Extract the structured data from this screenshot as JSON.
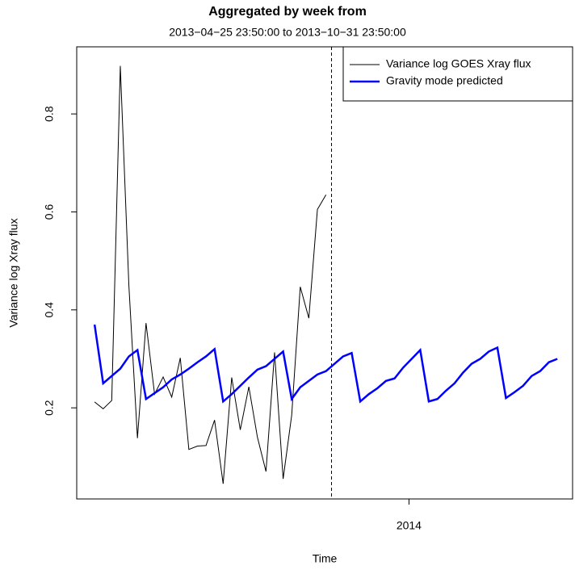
{
  "chart_data": {
    "type": "line",
    "title": "Aggregated by week from",
    "subtitle": "2013−04−25 23:50:00 to 2013−10−31 23:50:00",
    "x_label": "Time",
    "y_label": "Variance log Xray flux",
    "xlim": [
      2013.275,
      2014.357
    ],
    "ylim": [
      0.014,
      0.937
    ],
    "xticks": [
      {
        "value": 2014,
        "label": "2014"
      }
    ],
    "yticks": [
      0.2,
      0.4,
      0.6,
      0.8
    ],
    "vline": 2013.831,
    "legend": "topright",
    "series": [
      {
        "name": "Variance log GOES Xray flux",
        "color": "#000000",
        "width": 1,
        "x": [
          2013.314,
          2013.3327,
          2013.3514,
          2013.3701,
          2013.3888,
          2013.4075,
          2013.4262,
          2013.4449,
          2013.4636,
          2013.4823,
          2013.501,
          2013.5197,
          2013.5384,
          2013.5571,
          2013.5758,
          2013.5945,
          2013.6132,
          2013.6319,
          2013.6506,
          2013.6693,
          2013.688,
          2013.7067,
          2013.7254,
          2013.7441,
          2013.7628,
          2013.7815,
          2013.8002,
          2013.8189
        ],
        "values": [
          0.212,
          0.198,
          0.215,
          0.898,
          0.45,
          0.138,
          0.373,
          0.228,
          0.263,
          0.222,
          0.302,
          0.115,
          0.122,
          0.123,
          0.175,
          0.045,
          0.262,
          0.155,
          0.243,
          0.14,
          0.07,
          0.313,
          0.055,
          0.185,
          0.447,
          0.383,
          0.605,
          0.635
        ]
      },
      {
        "name": "Gravity mode predicted",
        "color": "#0000ff",
        "width": 2.5,
        "x": [
          2013.314,
          2013.3327,
          2013.3514,
          2013.3701,
          2013.3888,
          2013.4075,
          2013.4262,
          2013.4449,
          2013.4636,
          2013.4823,
          2013.501,
          2013.5197,
          2013.5384,
          2013.5571,
          2013.5758,
          2013.5945,
          2013.6132,
          2013.6319,
          2013.6506,
          2013.6693,
          2013.688,
          2013.7067,
          2013.7254,
          2013.7441,
          2013.7628,
          2013.7815,
          2013.8002,
          2013.8189,
          2013.8376,
          2013.8563,
          2013.875,
          2013.8937,
          2013.9124,
          2013.9311,
          2013.9498,
          2013.9685,
          2013.9872,
          2014.0059,
          2014.0246,
          2014.0433,
          2014.062,
          2014.0807,
          2014.0994,
          2014.1181,
          2014.1368,
          2014.1555,
          2014.1742,
          2014.1929,
          2014.2116,
          2014.2303,
          2014.249,
          2014.2677,
          2014.2864,
          2014.3051,
          2014.3238
        ],
        "values": [
          0.37,
          0.25,
          0.265,
          0.28,
          0.305,
          0.318,
          0.218,
          0.23,
          0.242,
          0.258,
          0.268,
          0.28,
          0.293,
          0.305,
          0.32,
          0.213,
          0.228,
          0.245,
          0.262,
          0.278,
          0.285,
          0.3,
          0.315,
          0.218,
          0.242,
          0.255,
          0.268,
          0.275,
          0.29,
          0.305,
          0.312,
          0.213,
          0.228,
          0.24,
          0.255,
          0.26,
          0.282,
          0.3,
          0.318,
          0.213,
          0.218,
          0.235,
          0.25,
          0.272,
          0.29,
          0.3,
          0.315,
          0.323,
          0.22,
          0.232,
          0.245,
          0.265,
          0.275,
          0.293,
          0.3
        ]
      }
    ]
  }
}
